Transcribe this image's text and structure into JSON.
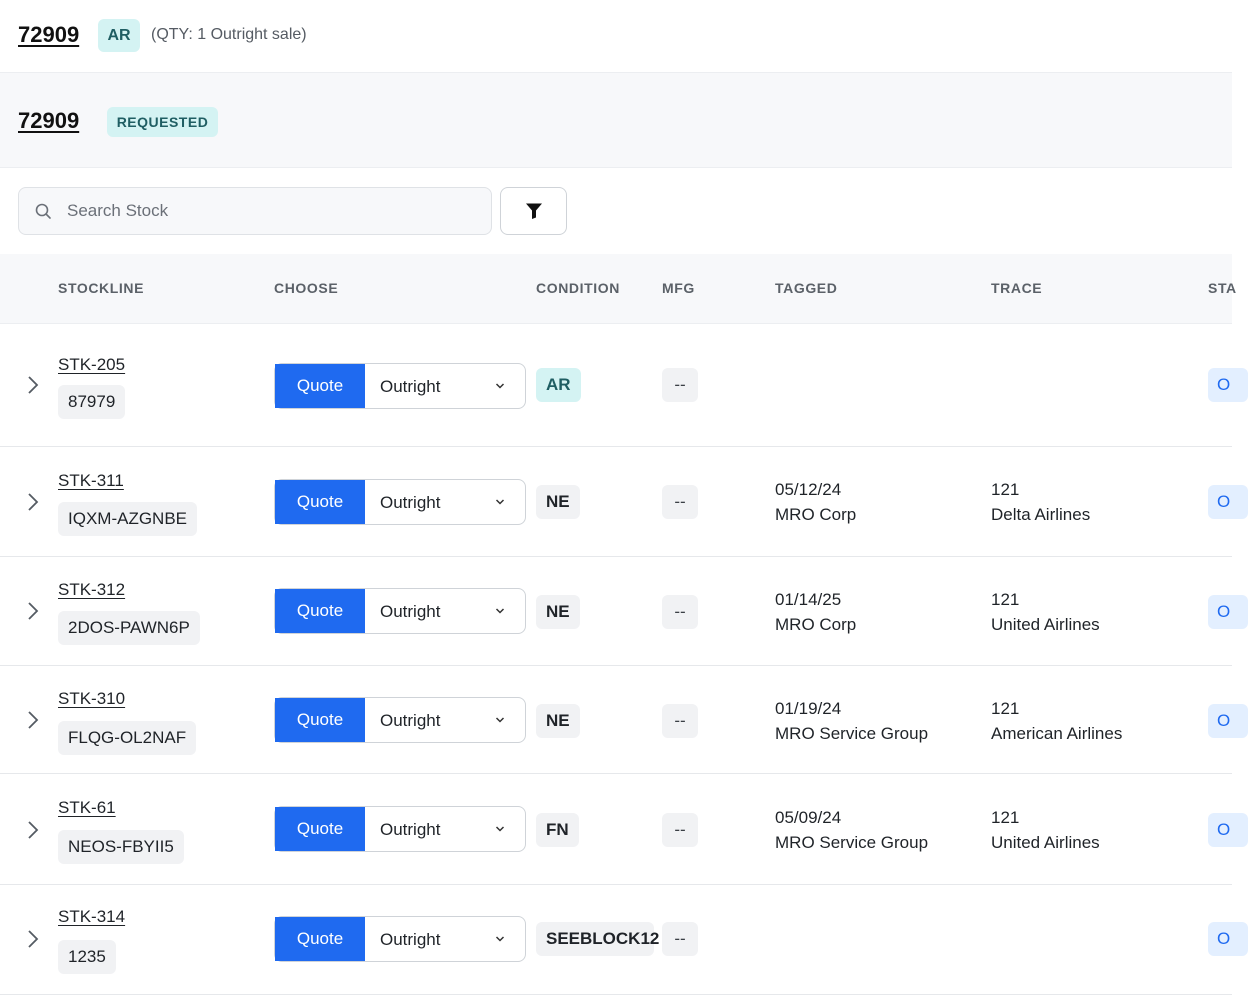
{
  "header": {
    "id": "72909",
    "condition_badge": "AR",
    "qty_text": "(QTY: 1 Outright sale)"
  },
  "request": {
    "id": "72909",
    "status_badge": "REQUESTED"
  },
  "search": {
    "placeholder": "Search Stock",
    "value": ""
  },
  "table": {
    "columns": [
      "STOCKLINE",
      "CHOOSE",
      "CONDITION",
      "MFG",
      "TAGGED",
      "TRACE",
      "STA"
    ],
    "rows": [
      {
        "stockline": "STK-205",
        "part": "87979",
        "action": "Quote",
        "type": "Outright",
        "condition": "AR",
        "mfg": "--",
        "tagged_date": "",
        "tagged_by": "",
        "trace_code": "",
        "trace_org": "",
        "status": "O"
      },
      {
        "stockline": "STK-311",
        "part": "IQXM-AZGNBE",
        "action": "Quote",
        "type": "Outright",
        "condition": "NE",
        "mfg": "--",
        "tagged_date": "05/12/24",
        "tagged_by": "MRO Corp",
        "trace_code": "121",
        "trace_org": "Delta Airlines",
        "status": "O"
      },
      {
        "stockline": "STK-312",
        "part": "2DOS-PAWN6P",
        "action": "Quote",
        "type": "Outright",
        "condition": "NE",
        "mfg": "--",
        "tagged_date": "01/14/25",
        "tagged_by": "MRO Corp",
        "trace_code": "121",
        "trace_org": "United Airlines",
        "status": "O"
      },
      {
        "stockline": "STK-310",
        "part": "FLQG-OL2NAF",
        "action": "Quote",
        "type": "Outright",
        "condition": "NE",
        "mfg": "--",
        "tagged_date": "01/19/24",
        "tagged_by": "MRO Service Group",
        "trace_code": "121",
        "trace_org": "American Airlines",
        "status": "O"
      },
      {
        "stockline": "STK-61",
        "part": "NEOS-FBYII5",
        "action": "Quote",
        "type": "Outright",
        "condition": "FN",
        "mfg": "--",
        "tagged_date": "05/09/24",
        "tagged_by": "MRO Service Group",
        "trace_code": "121",
        "trace_org": "United Airlines",
        "status": "O"
      },
      {
        "stockline": "STK-314",
        "part": "1235",
        "action": "Quote",
        "type": "Outright",
        "condition": "SEEBLOCK12",
        "mfg": "--",
        "tagged_date": "",
        "tagged_by": "",
        "trace_code": "",
        "trace_org": "",
        "status": "O"
      }
    ]
  },
  "colors": {
    "primary": "#1f6af0",
    "badge_teal_bg": "#d4f3f3",
    "badge_teal_text": "#1f5e63",
    "chip_bg": "#f1f2f4",
    "header_bg": "#f7f8fa"
  },
  "icons": {
    "search": "search-icon",
    "filter": "filter-icon",
    "expand": "chevron-right-icon",
    "dropdown": "chevron-down-icon"
  }
}
